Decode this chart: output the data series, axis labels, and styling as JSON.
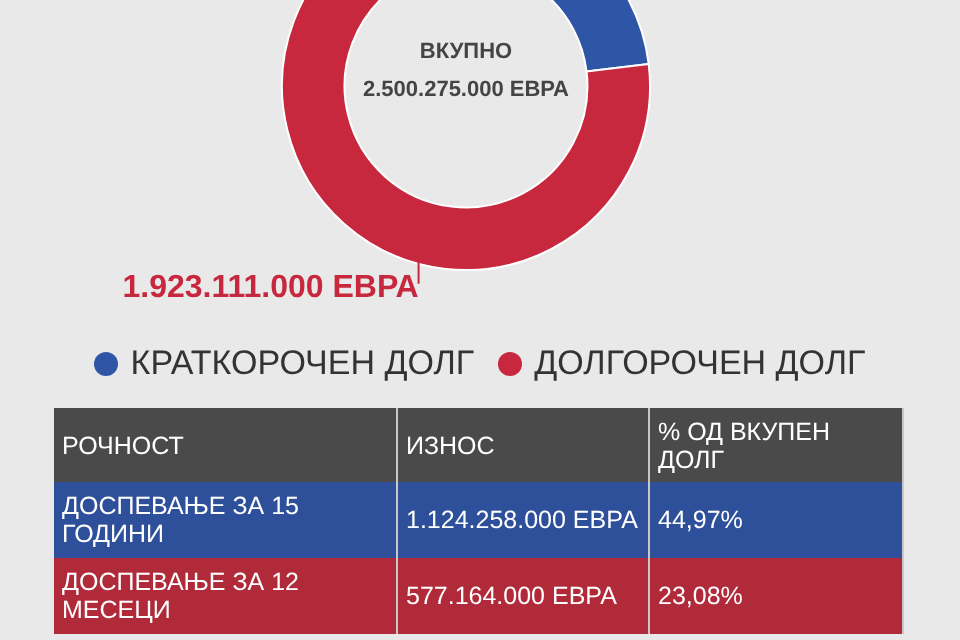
{
  "chart_data": [
    {
      "type": "donut",
      "categories": [
        "КРАТКОРОЧЕН ДОЛГ",
        "ДОЛГОРОЧЕН ДОЛГ"
      ],
      "values": [
        577164000,
        1923111000
      ],
      "colors": [
        "#2f56a6",
        "#c8283e"
      ],
      "value_labels": [
        null,
        "1.923.111.000 ЕВРА"
      ],
      "annotations": [
        "ВКУПНО",
        "2.500.275.000 ЕВРА"
      ],
      "legend": "bottom"
    },
    {
      "type": "other",
      "xlabel": "РОЧНОСТ",
      "categories": [
        "ДОСПЕВАЊЕ ЗА 15 ГОДИНИ",
        "ДОСПЕВАЊЕ ЗА 12 МЕСЕЦИ"
      ],
      "colors": [
        "#2e4f9a",
        "#b02a3a"
      ],
      "annotations": [
        "ИЗНОС",
        "% ОД ВКУПЕН ДОЛГ",
        "1.124.258.000 ЕВРА",
        "44,97%",
        "577.164.000 ЕВРА",
        "23,08%"
      ]
    }
  ]
}
